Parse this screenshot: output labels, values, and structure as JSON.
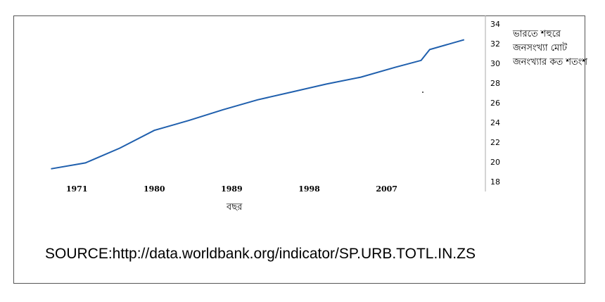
{
  "chart_data": {
    "type": "line",
    "title": "",
    "ylabel": "ভারতে শহুরে জনসংখ্যা মোট জনংখ্যার কত শতংশ",
    "xlabel": "বছর",
    "x_ticks": [
      "1971",
      "1980",
      "1989",
      "1998",
      "2007"
    ],
    "y_ticks": [
      "18",
      "20",
      "22",
      "24",
      "26",
      "28",
      "30",
      "32",
      "34"
    ],
    "ylim": [
      18,
      34
    ],
    "xlim": [
      1966,
      2017
    ],
    "y_axis_position": "right",
    "grid": false,
    "series": [
      {
        "color": "#1f5fad",
        "x": [
          1968,
          1972,
          1976,
          1980,
          1984,
          1988,
          1992,
          1996,
          2000,
          2004,
          2008,
          2011,
          2012,
          2016
        ],
        "values": [
          19.3,
          19.9,
          21.4,
          23.2,
          24.2,
          25.3,
          26.3,
          27.1,
          27.9,
          28.6,
          29.6,
          30.3,
          31.4,
          32.4
        ]
      }
    ]
  },
  "source_text": "SOURCE:http://data.worldbank.org/indicator/SP.URB.TOTL.IN.ZS"
}
